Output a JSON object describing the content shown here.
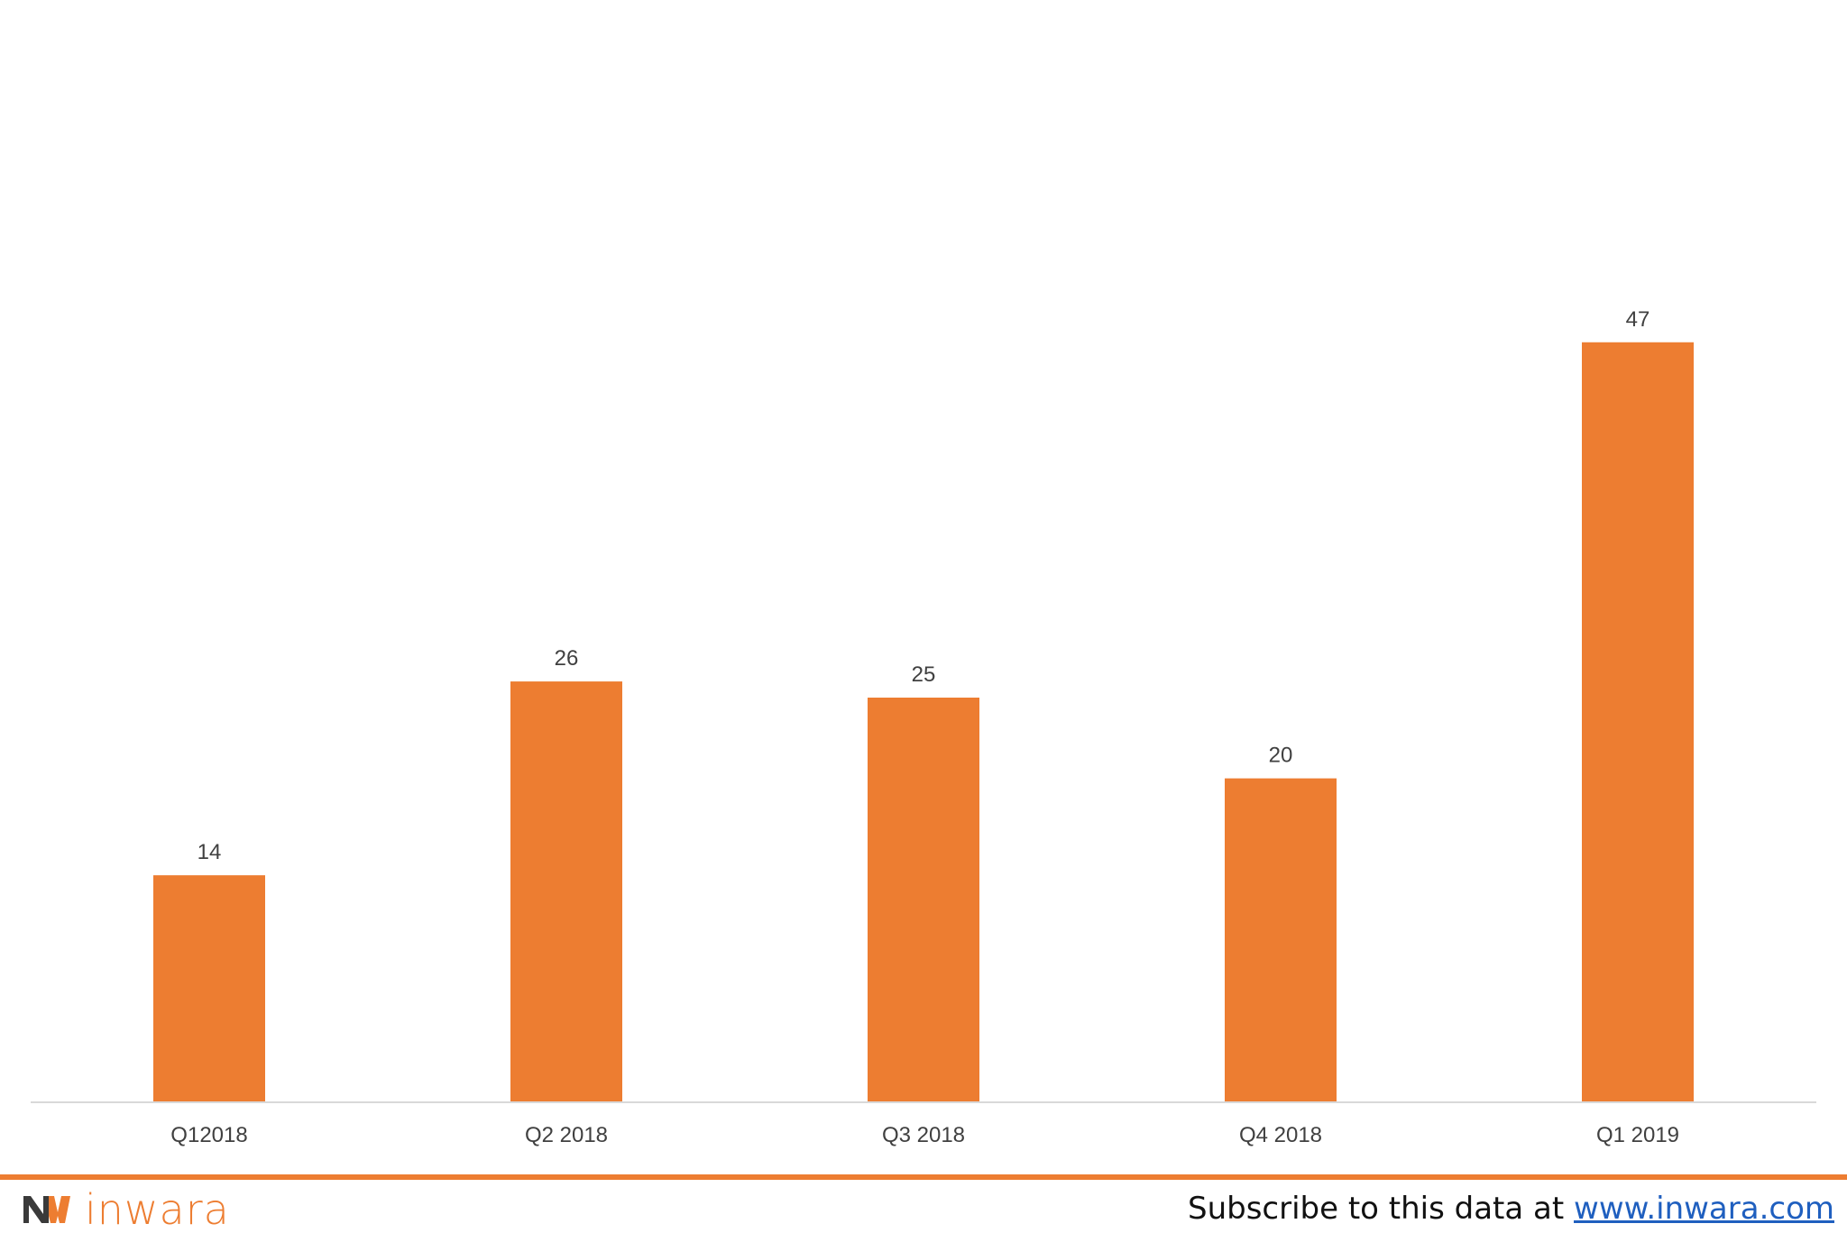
{
  "chart_data": {
    "type": "bar",
    "categories": [
      "Q12018",
      "Q2 2018",
      "Q3 2018",
      "Q4 2018",
      "Q1 2019"
    ],
    "values": [
      14,
      26,
      25,
      20,
      47
    ],
    "data_labels": [
      "14",
      "26",
      "25",
      "20",
      "47"
    ],
    "title": "",
    "xlabel": "",
    "ylabel": "",
    "ylim": [
      0,
      50
    ],
    "grid": false,
    "legend": "none",
    "bar_color": "#ed7d31",
    "axis_color": "#d9d9d9"
  },
  "footer": {
    "logo_text": "inwara",
    "subscribe_text": "Subscribe to this data at ",
    "link_text": "www.inwara.com",
    "accent_color": "#ed7d31",
    "link_color": "#1f5fbf"
  }
}
